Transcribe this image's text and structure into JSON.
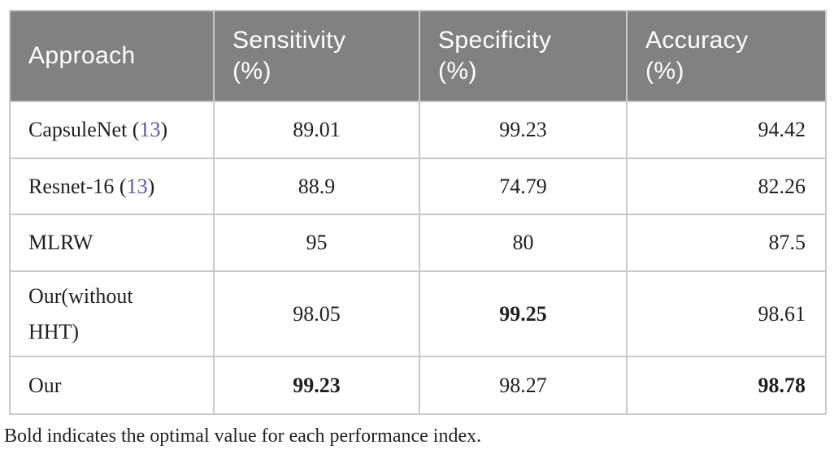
{
  "colors": {
    "header_bg": "#818181",
    "header_text": "#ffffff",
    "body_text": "#231f20",
    "citation": "#5b57a8",
    "border": "#c9c9c9"
  },
  "chart_data": {
    "type": "table",
    "title": "",
    "columns": [
      "Approach",
      "Sensitivity (%)",
      "Specificity (%)",
      "Accuracy (%)"
    ],
    "rows": [
      [
        "CapsuleNet (13)",
        89.01,
        99.23,
        94.42
      ],
      [
        "Resnet-16 (13)",
        88.9,
        74.79,
        82.26
      ],
      [
        "MLRW",
        95,
        80,
        87.5
      ],
      [
        "Our(without HHT)",
        98.05,
        99.25,
        98.61
      ],
      [
        "Our",
        99.23,
        98.27,
        98.78
      ]
    ],
    "bold_cells": [
      "row 4 Specificity 99.25",
      "row 5 Sensitivity 99.23",
      "row 5 Accuracy 98.78"
    ]
  },
  "table": {
    "columns": [
      {
        "label": "Approach",
        "unit": ""
      },
      {
        "label": "Sensitivity",
        "unit": "(%)"
      },
      {
        "label": "Specificity",
        "unit": "(%)"
      },
      {
        "label": "Accuracy",
        "unit": "(%)"
      }
    ],
    "rows": [
      {
        "approach": {
          "prefix": "CapsuleNet (",
          "ref": "13",
          "suffix": ")"
        },
        "sensitivity": {
          "text": "89.01",
          "bold": false
        },
        "specificity": {
          "text": "99.23",
          "bold": false
        },
        "accuracy": {
          "text": "94.42",
          "bold": false
        }
      },
      {
        "approach": {
          "prefix": "Resnet-16 (",
          "ref": "13",
          "suffix": ")"
        },
        "sensitivity": {
          "text": "88.9",
          "bold": false
        },
        "specificity": {
          "text": "74.79",
          "bold": false
        },
        "accuracy": {
          "text": "82.26",
          "bold": false
        }
      },
      {
        "approach": {
          "prefix": "MLRW",
          "ref": "",
          "suffix": ""
        },
        "sensitivity": {
          "text": "95",
          "bold": false
        },
        "specificity": {
          "text": "80",
          "bold": false
        },
        "accuracy": {
          "text": "87.5",
          "bold": false
        }
      },
      {
        "approach": {
          "prefix": "Our(without HHT)",
          "ref": "",
          "suffix": ""
        },
        "sensitivity": {
          "text": "98.05",
          "bold": false
        },
        "specificity": {
          "text": "99.25",
          "bold": true
        },
        "accuracy": {
          "text": "98.61",
          "bold": false
        }
      },
      {
        "approach": {
          "prefix": "Our",
          "ref": "",
          "suffix": ""
        },
        "sensitivity": {
          "text": "99.23",
          "bold": true
        },
        "specificity": {
          "text": "98.27",
          "bold": false
        },
        "accuracy": {
          "text": "98.78",
          "bold": true
        }
      }
    ]
  },
  "footnote": "Bold indicates the optimal value for each performance index."
}
